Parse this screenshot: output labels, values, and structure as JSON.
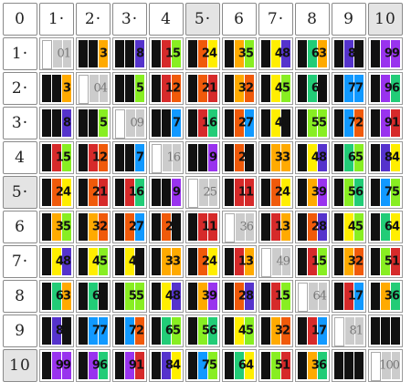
{
  "corner_label": "0",
  "col_headers": [
    "1·",
    "2·",
    "3·",
    "4",
    "5·",
    "6",
    "7·",
    "8",
    "9",
    "10"
  ],
  "row_headers": [
    "1·",
    "2·",
    "3·",
    "4",
    "5·",
    "6",
    "7·",
    "8",
    "9",
    "10"
  ],
  "square_indices": [
    4,
    9
  ],
  "digit_colors": {
    "0": "#111111",
    "1": "#d62a2a",
    "2": "#f05a0a",
    "3": "#ffaa00",
    "4": "#ffee00",
    "5": "#88ee22",
    "6": "#22cc77",
    "7": "#1199ff",
    "8": "#5533cc",
    "9": "#9933ee",
    "blank": "#ffffff",
    "diag": "#cccccc"
  },
  "products": [
    [
      "01",
      "04",
      "09",
      "16",
      "25",
      "36",
      "49",
      "64",
      "81",
      "100"
    ]
  ],
  "cells": [
    [
      "01",
      "3",
      "8",
      "15",
      "24",
      "35",
      "48",
      "63",
      "80",
      "99"
    ],
    [
      "3",
      "04",
      "5",
      "12",
      "21",
      "32",
      "45",
      "60",
      "77",
      "96"
    ],
    [
      "8",
      "5",
      "09",
      "7",
      "16",
      "27",
      "40",
      "55",
      "72",
      "91"
    ],
    [
      "15",
      "12",
      "7",
      "16",
      "9",
      "20",
      "33",
      "48",
      "65",
      "84"
    ],
    [
      "24",
      "21",
      "16",
      "9",
      "25",
      "11",
      "24",
      "39",
      "56",
      "75"
    ],
    [
      "35",
      "32",
      "27",
      "20",
      "11",
      "36",
      "13",
      "28",
      "45",
      "64"
    ],
    [
      "48",
      "45",
      "40",
      "33",
      "24",
      "13",
      "49",
      "15",
      "32",
      "51"
    ],
    [
      "63",
      "60",
      "55",
      "48",
      "39",
      "28",
      "15",
      "64",
      "17",
      "36"
    ],
    [
      "80",
      "77",
      "72",
      "65",
      "56",
      "45",
      "32",
      "17",
      "81",
      ""
    ],
    [
      "99",
      "96",
      "91",
      "84",
      "75",
      "64",
      "51",
      "36",
      "",
      "100"
    ]
  ]
}
